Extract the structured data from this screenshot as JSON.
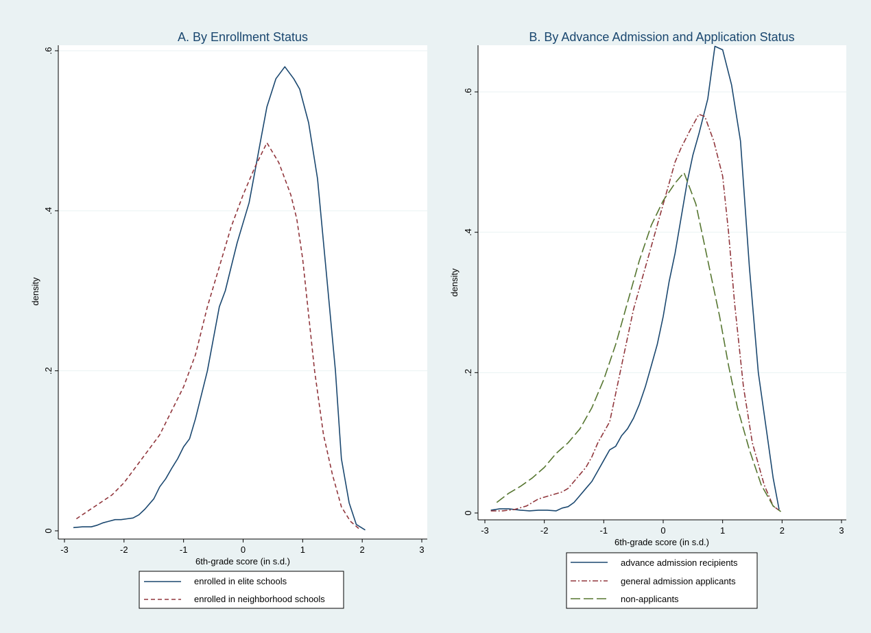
{
  "chart_data": [
    {
      "type": "line",
      "title": "A. By Enrollment Status",
      "xlabel": "6th-grade score (in s.d.)",
      "ylabel": "density",
      "xlim": [
        -3,
        3
      ],
      "ylim": [
        0,
        0.6
      ],
      "xticks": [
        -3,
        -2,
        -1,
        0,
        1,
        2,
        3
      ],
      "xtick_labels": [
        "-3",
        "-2",
        "-1",
        "0",
        "1",
        "2",
        "3"
      ],
      "yticks": [
        0,
        0.2,
        0.4,
        0.6
      ],
      "ytick_labels": [
        "0",
        ".2",
        ".4",
        ".6"
      ],
      "grid": "horizontal",
      "legend_position": "bottom",
      "series": [
        {
          "name": "enrolled in elite schools",
          "color": "#1a476f",
          "dash": "solid",
          "x": [
            -2.85,
            -2.7,
            -2.55,
            -2.45,
            -2.35,
            -2.25,
            -2.15,
            -2.05,
            -1.95,
            -1.85,
            -1.75,
            -1.65,
            -1.5,
            -1.4,
            -1.3,
            -1.2,
            -1.1,
            -1.0,
            -0.9,
            -0.8,
            -0.7,
            -0.6,
            -0.5,
            -0.4,
            -0.3,
            -0.2,
            -0.1,
            0.0,
            0.1,
            0.2,
            0.3,
            0.4,
            0.55,
            0.7,
            0.85,
            0.95,
            1.1,
            1.25,
            1.4,
            1.55,
            1.65,
            1.78,
            1.9,
            2.05
          ],
          "y": [
            0.004,
            0.005,
            0.005,
            0.007,
            0.01,
            0.012,
            0.014,
            0.014,
            0.015,
            0.016,
            0.02,
            0.027,
            0.04,
            0.055,
            0.065,
            0.078,
            0.09,
            0.105,
            0.115,
            0.14,
            0.17,
            0.2,
            0.24,
            0.28,
            0.3,
            0.33,
            0.36,
            0.385,
            0.41,
            0.45,
            0.49,
            0.53,
            0.565,
            0.58,
            0.565,
            0.552,
            0.51,
            0.44,
            0.32,
            0.2,
            0.09,
            0.035,
            0.008,
            0.001
          ]
        },
        {
          "name": "enrolled in neighborhood schools",
          "color": "#90353b",
          "dash": "dash",
          "x": [
            -2.8,
            -2.6,
            -2.4,
            -2.2,
            -2.0,
            -1.8,
            -1.6,
            -1.4,
            -1.2,
            -1.0,
            -0.8,
            -0.6,
            -0.4,
            -0.2,
            0.0,
            0.2,
            0.4,
            0.6,
            0.8,
            0.9,
            1.0,
            1.1,
            1.2,
            1.35,
            1.5,
            1.65,
            1.8,
            1.97
          ],
          "y": [
            0.015,
            0.025,
            0.035,
            0.045,
            0.06,
            0.08,
            0.1,
            0.12,
            0.15,
            0.18,
            0.22,
            0.28,
            0.33,
            0.38,
            0.42,
            0.455,
            0.485,
            0.46,
            0.42,
            0.39,
            0.34,
            0.27,
            0.2,
            0.12,
            0.07,
            0.03,
            0.012,
            0.001
          ]
        }
      ]
    },
    {
      "type": "line",
      "title": "B. By Advance Admission and Application Status",
      "xlabel": "6th-grade score (in s.d.)",
      "ylabel": "density",
      "xlim": [
        -3,
        3
      ],
      "ylim": [
        0,
        0.66
      ],
      "xticks": [
        -3,
        -2,
        -1,
        0,
        1,
        2,
        3
      ],
      "xtick_labels": [
        "-3",
        "-2",
        "-1",
        "0",
        "1",
        "2",
        "3"
      ],
      "yticks": [
        0,
        0.2,
        0.4,
        0.6
      ],
      "ytick_labels": [
        "0",
        ".2",
        ".4",
        ".6"
      ],
      "grid": "horizontal",
      "legend_position": "bottom",
      "series": [
        {
          "name": "advance admission recipients",
          "color": "#1a476f",
          "dash": "solid",
          "x": [
            -2.9,
            -2.75,
            -2.6,
            -2.4,
            -2.25,
            -2.1,
            -1.95,
            -1.8,
            -1.7,
            -1.6,
            -1.5,
            -1.4,
            -1.3,
            -1.2,
            -1.1,
            -1.0,
            -0.9,
            -0.8,
            -0.7,
            -0.6,
            -0.5,
            -0.4,
            -0.3,
            -0.2,
            -0.1,
            0.0,
            0.1,
            0.2,
            0.3,
            0.4,
            0.5,
            0.6,
            0.75,
            0.87,
            1.0,
            1.15,
            1.3,
            1.45,
            1.6,
            1.75,
            1.85,
            1.95
          ],
          "y": [
            0.004,
            0.006,
            0.006,
            0.004,
            0.003,
            0.004,
            0.004,
            0.003,
            0.007,
            0.009,
            0.015,
            0.025,
            0.035,
            0.045,
            0.06,
            0.075,
            0.09,
            0.095,
            0.11,
            0.12,
            0.135,
            0.155,
            0.18,
            0.21,
            0.24,
            0.28,
            0.33,
            0.37,
            0.42,
            0.47,
            0.51,
            0.54,
            0.59,
            0.665,
            0.66,
            0.61,
            0.53,
            0.35,
            0.2,
            0.11,
            0.05,
            0.005
          ]
        },
        {
          "name": "general admission applicants",
          "color": "#90353b",
          "dash": "dashdot",
          "x": [
            -2.9,
            -2.7,
            -2.5,
            -2.3,
            -2.1,
            -1.9,
            -1.7,
            -1.6,
            -1.5,
            -1.4,
            -1.3,
            -1.2,
            -1.1,
            -1.0,
            -0.9,
            -0.8,
            -0.7,
            -0.6,
            -0.5,
            -0.4,
            -0.3,
            -0.2,
            -0.1,
            0.0,
            0.1,
            0.2,
            0.3,
            0.45,
            0.6,
            0.7,
            0.85,
            1.0,
            1.1,
            1.2,
            1.35,
            1.5,
            1.7,
            1.85,
            1.98
          ],
          "y": [
            0.003,
            0.003,
            0.005,
            0.01,
            0.02,
            0.025,
            0.03,
            0.035,
            0.045,
            0.055,
            0.065,
            0.08,
            0.1,
            0.115,
            0.13,
            0.17,
            0.21,
            0.25,
            0.29,
            0.32,
            0.35,
            0.38,
            0.41,
            0.44,
            0.47,
            0.5,
            0.52,
            0.545,
            0.568,
            0.565,
            0.53,
            0.48,
            0.4,
            0.3,
            0.18,
            0.1,
            0.04,
            0.01,
            0.002
          ]
        },
        {
          "name": "non-applicants",
          "color": "#55752f",
          "dash": "longdash",
          "x": [
            -2.8,
            -2.6,
            -2.4,
            -2.2,
            -2.0,
            -1.8,
            -1.6,
            -1.4,
            -1.2,
            -1.0,
            -0.8,
            -0.6,
            -0.4,
            -0.2,
            0.0,
            0.2,
            0.35,
            0.55,
            0.75,
            0.95,
            1.1,
            1.25,
            1.45,
            1.65,
            1.85,
            1.98
          ],
          "y": [
            0.015,
            0.028,
            0.038,
            0.05,
            0.065,
            0.085,
            0.1,
            0.12,
            0.15,
            0.19,
            0.24,
            0.3,
            0.36,
            0.41,
            0.445,
            0.47,
            0.485,
            0.44,
            0.36,
            0.28,
            0.21,
            0.15,
            0.09,
            0.04,
            0.01,
            0.002
          ]
        }
      ]
    }
  ]
}
